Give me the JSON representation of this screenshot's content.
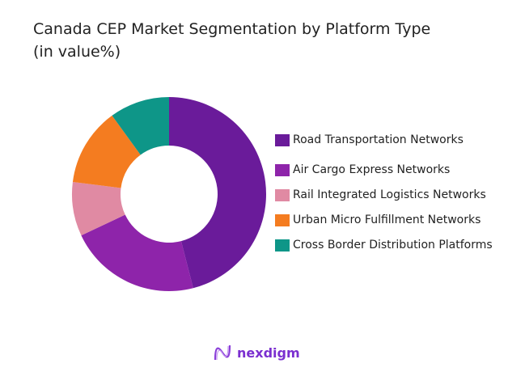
{
  "chart_data": {
    "type": "pie",
    "subtype": "donut",
    "title": "Canada CEP Market Segmentation by Platform Type",
    "subtitle": "(in value%)",
    "categories": [
      "Road Transportation Networks",
      "Air Cargo Express Networks",
      "Rail Integrated Logistics Networks",
      "Urban Micro  Fulfillment Networks",
      "Cross Border Distribution Platforms"
    ],
    "values": [
      46,
      22,
      9,
      13,
      10
    ],
    "colors": [
      "#6a1b9a",
      "#8e24aa",
      "#e08aa3",
      "#f47c20",
      "#0e9688"
    ],
    "legend_placement": "right"
  },
  "brand": {
    "name": "nexdigm",
    "color": "#7b2fd0"
  }
}
